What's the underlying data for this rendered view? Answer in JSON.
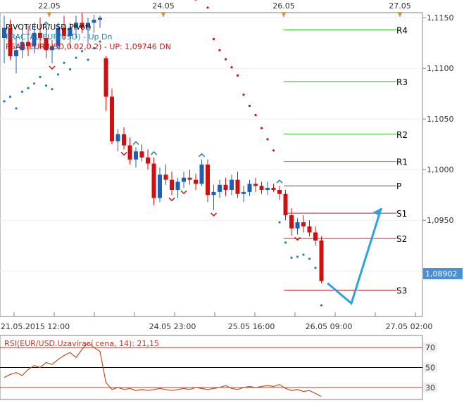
{
  "chart_data": [
    {
      "type": "candlestick",
      "symbol": "EUR/USD",
      "indicators": [
        {
          "label": "PIVOT(EUR/USD,Pivot)",
          "color": "#000000"
        },
        {
          "label": "FRACTAL(EUR/USD) -  Up  Dn",
          "color": "#1e7fb8"
        },
        {
          "label": "PSAR(EUR/USD,0.02,0.2) - UP: 1,09746  DN",
          "color": "#d01010"
        }
      ],
      "top_dates": [
        "22.05",
        "24.05",
        "26.05",
        "27.05"
      ],
      "bottom_dates": [
        "21.05.2015 12:00",
        "24.05 23:00",
        "25.05 16:00",
        "26.05 09:00",
        "27.05 02:00"
      ],
      "y_ticks": [
        "1,1150",
        "1,1100",
        "1,1050",
        "1,1000",
        "1,0950",
        "1,0900"
      ],
      "ylim": [
        1.0855,
        1.1155
      ],
      "current_price": {
        "label": "1,08902",
        "value": 1.08902,
        "color": "#4a90d9"
      },
      "pivot_levels": [
        {
          "name": "R4",
          "value": 1.1138,
          "color": "#2db52d"
        },
        {
          "name": "R3",
          "value": 1.1087,
          "color": "#2db52d"
        },
        {
          "name": "R2",
          "value": 1.1035,
          "color": "#2db52d"
        },
        {
          "name": "R1",
          "value": 1.1008,
          "color": "#2db52d"
        },
        {
          "name": "P",
          "value": 1.0984,
          "color": "#555555"
        },
        {
          "name": "S1",
          "value": 1.0957,
          "color": "#c0282d"
        },
        {
          "name": "S2",
          "value": 1.0932,
          "color": "#c0282d"
        },
        {
          "name": "S3",
          "value": 1.0881,
          "color": "#c0282d"
        }
      ],
      "candles": [
        [
          1.113,
          1.1152,
          1.1105,
          1.114
        ],
        [
          1.114,
          1.1148,
          1.1108,
          1.1112
        ],
        [
          1.1112,
          1.1132,
          1.1095,
          1.1118
        ],
        [
          1.1118,
          1.114,
          1.111,
          1.1126
        ],
        [
          1.1126,
          1.1142,
          1.1112,
          1.1122
        ],
        [
          1.1122,
          1.1145,
          1.1115,
          1.1135
        ],
        [
          1.1135,
          1.115,
          1.112,
          1.113
        ],
        [
          1.113,
          1.114,
          1.111,
          1.1118
        ],
        [
          1.1118,
          1.1128,
          1.1105,
          1.1122
        ],
        [
          1.1122,
          1.1145,
          1.1118,
          1.114
        ],
        [
          1.114,
          1.1152,
          1.1128,
          1.1132
        ],
        [
          1.1132,
          1.1145,
          1.112,
          1.114
        ],
        [
          1.114,
          1.1152,
          1.113,
          1.1145
        ],
        [
          1.1145,
          1.1155,
          1.1135,
          1.114
        ],
        [
          1.114,
          1.115,
          1.1125,
          1.1145
        ],
        [
          1.1145,
          1.1153,
          1.1135,
          1.1148
        ],
        [
          1.1148,
          1.1152,
          1.114,
          1.115
        ],
        [
          1.111,
          1.1112,
          1.1058,
          1.1072
        ],
        [
          1.1072,
          1.108,
          1.1025,
          1.1028
        ],
        [
          1.1028,
          1.104,
          1.1018,
          1.1035
        ],
        [
          1.1035,
          1.1042,
          1.102,
          1.1024
        ],
        [
          1.1024,
          1.1032,
          1.1005,
          1.101
        ],
        [
          1.101,
          1.1022,
          1.1002,
          1.1018
        ],
        [
          1.1018,
          1.1025,
          1.1008,
          1.1012
        ],
        [
          1.1012,
          1.102,
          1.1,
          1.1006
        ],
        [
          1.1006,
          1.1012,
          1.0965,
          1.0972
        ],
        [
          1.0972,
          1.1002,
          1.0968,
          1.0995
        ],
        [
          1.0995,
          1.1005,
          1.0985,
          1.099
        ],
        [
          1.099,
          1.0998,
          1.0975,
          1.098
        ],
        [
          1.098,
          1.0992,
          1.0972,
          1.0988
        ],
        [
          1.0988,
          1.0998,
          1.0982,
          1.0992
        ],
        [
          1.0992,
          1.1,
          1.0985,
          1.099
        ],
        [
          1.099,
          1.0996,
          1.098,
          1.0986
        ],
        [
          1.0986,
          1.101,
          1.0984,
          1.1005
        ],
        [
          1.1005,
          1.101,
          1.0968,
          1.0975
        ],
        [
          1.0975,
          1.0985,
          1.096,
          1.0978
        ],
        [
          1.0978,
          1.099,
          1.0972,
          1.0985
        ],
        [
          1.0985,
          1.0992,
          1.0974,
          1.098
        ],
        [
          1.098,
          1.0995,
          1.0975,
          1.099
        ],
        [
          1.099,
          1.0998,
          1.0972,
          1.0976
        ],
        [
          1.0976,
          1.0984,
          1.0968,
          1.0978
        ],
        [
          1.0978,
          1.099,
          1.0974,
          1.0986
        ],
        [
          1.0986,
          1.0992,
          1.0978,
          1.0984
        ],
        [
          1.0984,
          1.0988,
          1.0976,
          1.098
        ],
        [
          1.098,
          1.0988,
          1.0975,
          1.0982
        ],
        [
          1.0982,
          1.0986,
          1.0978,
          1.098
        ],
        [
          1.098,
          1.0984,
          1.097,
          1.0976
        ],
        [
          1.0976,
          1.098,
          1.095,
          1.0955
        ],
        [
          1.0955,
          1.0962,
          1.0935,
          1.0942
        ],
        [
          1.0942,
          1.0952,
          1.0936,
          1.0948
        ],
        [
          1.0948,
          1.0955,
          1.0938,
          1.0944
        ],
        [
          1.0944,
          1.095,
          1.0934,
          1.0938
        ],
        [
          1.0938,
          1.0944,
          1.0925,
          1.093
        ],
        [
          1.093,
          1.0934,
          1.0888,
          1.089
        ]
      ],
      "forecast_path": [
        [
          1.0888,
          54
        ],
        [
          1.0868,
          58
        ],
        [
          1.0962,
          63
        ]
      ],
      "rsi": {
        "label": "RSI(EUR/USD.Uzavírací cena, 14): 21,15",
        "value": 21.15,
        "levels": [
          70,
          50,
          30
        ],
        "ylim": [
          18,
          82
        ],
        "values": [
          40,
          43,
          45,
          42,
          48,
          52,
          50,
          55,
          53,
          58,
          62,
          65,
          60,
          68,
          75,
          70,
          66,
          35,
          28,
          30,
          28,
          29,
          27,
          28,
          27,
          28,
          29,
          28,
          27,
          28,
          29,
          28,
          30,
          29,
          28,
          29,
          30,
          32,
          29,
          28,
          30,
          31,
          30,
          31,
          32,
          31,
          33,
          29,
          27,
          28,
          26,
          27,
          24,
          21
        ]
      }
    }
  ]
}
